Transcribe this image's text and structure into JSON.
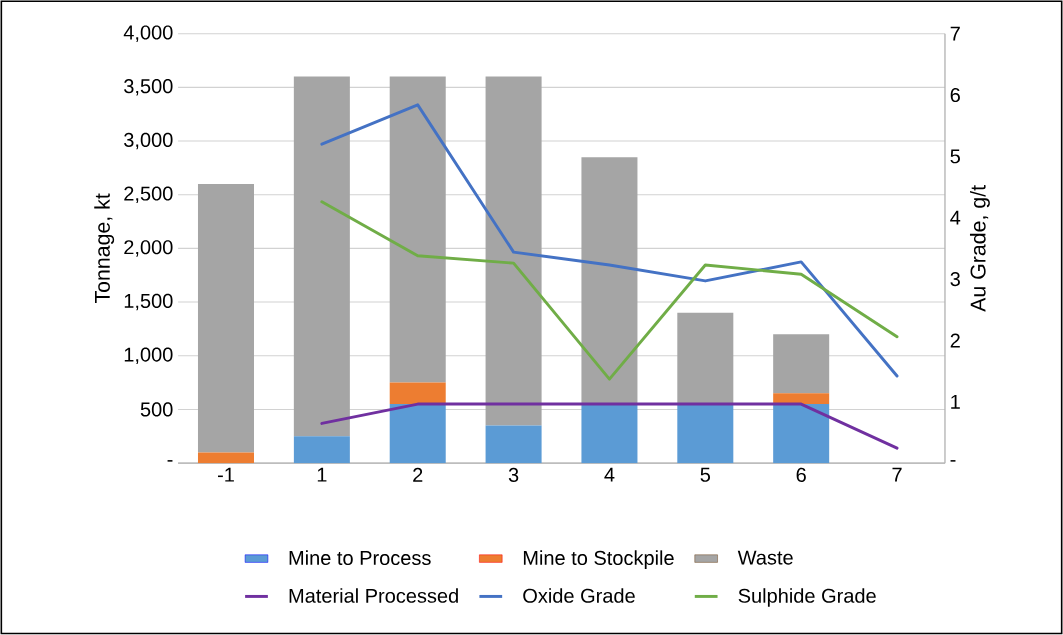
{
  "chart_data": {
    "type": "bar",
    "stacked": true,
    "categories": [
      "-1",
      "1",
      "2",
      "3",
      "4",
      "5",
      "6",
      "7"
    ],
    "ylabel": "Tonnage, kt",
    "y2label": "Au Grade, g/t",
    "ylim": [
      0,
      4000
    ],
    "yticks": [
      {
        "value": 0,
        "label": "-"
      },
      500,
      {
        "value": 1000,
        "label": "1,000"
      },
      {
        "value": 1500,
        "label": "1,500"
      },
      {
        "value": 2000,
        "label": "2,000"
      },
      {
        "value": 2500,
        "label": "2,500"
      },
      {
        "value": 3000,
        "label": "3,000"
      },
      {
        "value": 3500,
        "label": "3,500"
      },
      {
        "value": 4000,
        "label": "4,000"
      }
    ],
    "y2lim": [
      0,
      7
    ],
    "y2ticks": [
      {
        "value": 0,
        "label": "-"
      },
      1,
      2,
      3,
      4,
      5,
      6,
      7
    ],
    "grid": "y",
    "legend": "bottom",
    "series": [
      {
        "name": "Mine to Process",
        "type": "bar",
        "color": "#5b9bd5",
        "values": [
          0,
          250,
          550,
          350,
          550,
          550,
          550,
          null
        ]
      },
      {
        "name": "Mine to Stockpile",
        "type": "bar",
        "color": "#ed7d31",
        "values": [
          100,
          0,
          200,
          0,
          0,
          0,
          100,
          null
        ]
      },
      {
        "name": "Waste",
        "type": "bar",
        "color": "#a5a5a5",
        "values": [
          2500,
          3350,
          2850,
          3250,
          2300,
          850,
          550,
          null
        ]
      },
      {
        "name": "Material Processed",
        "type": "line",
        "color": "#7030a0",
        "values": [
          null,
          370,
          550,
          550,
          550,
          550,
          550,
          140
        ]
      },
      {
        "name": "Oxide Grade",
        "type": "line",
        "axis": "y2",
        "color": "#4472c4",
        "values": [
          null,
          5.2,
          5.84,
          3.44,
          3.23,
          2.97,
          3.28,
          1.42
        ]
      },
      {
        "name": "Sulphide Grade",
        "type": "line",
        "axis": "y2",
        "color": "#70ad47",
        "values": [
          null,
          4.26,
          3.38,
          3.26,
          1.37,
          3.23,
          3.08,
          2.06
        ]
      }
    ]
  }
}
